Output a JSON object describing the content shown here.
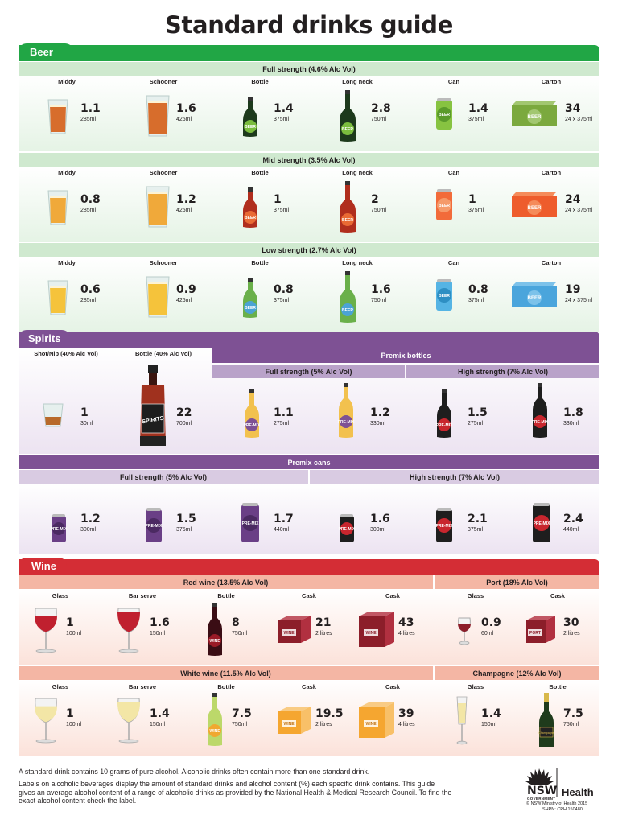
{
  "title": "Standard drinks guide",
  "colors": {
    "beer": "#21a645",
    "spirits": "#7e5194",
    "wine": "#d42d35"
  },
  "beer": {
    "section": "Beer",
    "columns": [
      "Middy",
      "Schooner",
      "Bottle",
      "Long neck",
      "Can",
      "Carton"
    ],
    "bands": [
      {
        "title": "Full strength (4.6% Alc Vol)",
        "items": [
          {
            "value": "1.1",
            "vol": "285ml"
          },
          {
            "value": "1.6",
            "vol": "425ml"
          },
          {
            "value": "1.4",
            "vol": "375ml"
          },
          {
            "value": "2.8",
            "vol": "750ml"
          },
          {
            "value": "1.4",
            "vol": "375ml"
          },
          {
            "value": "34",
            "vol": "24 x 375ml"
          }
        ]
      },
      {
        "title": "Mid strength (3.5% Alc Vol)",
        "items": [
          {
            "value": "0.8",
            "vol": "285ml"
          },
          {
            "value": "1.2",
            "vol": "425ml"
          },
          {
            "value": "1",
            "vol": "375ml"
          },
          {
            "value": "2",
            "vol": "750ml"
          },
          {
            "value": "1",
            "vol": "375ml"
          },
          {
            "value": "24",
            "vol": "24 x 375ml"
          }
        ]
      },
      {
        "title": "Low strength (2.7% Alc Vol)",
        "items": [
          {
            "value": "0.6",
            "vol": "285ml"
          },
          {
            "value": "0.9",
            "vol": "425ml"
          },
          {
            "value": "0.8",
            "vol": "375ml"
          },
          {
            "value": "1.6",
            "vol": "750ml"
          },
          {
            "value": "0.8",
            "vol": "375ml"
          },
          {
            "value": "19",
            "vol": "24 x 375ml"
          }
        ]
      }
    ],
    "icon_text": "BEER"
  },
  "spirits": {
    "section": "Spirits",
    "shot_label": "Shot/Nip (40% Alc Vol)",
    "bottle_label": "Bottle (40% Alc Vol)",
    "shot": {
      "value": "1",
      "vol": "30ml"
    },
    "bottle": {
      "value": "22",
      "vol": "700ml"
    },
    "bottle_text": "SPIRITS",
    "premix_bottles": "Premix bottles",
    "premix_cans": "Premix cans",
    "full": "Full strength (5% Alc Vol)",
    "high": "High strength (7% Alc Vol)",
    "bottles": [
      {
        "value": "1.1",
        "vol": "275ml"
      },
      {
        "value": "1.2",
        "vol": "330ml"
      },
      {
        "value": "1.5",
        "vol": "275ml"
      },
      {
        "value": "1.8",
        "vol": "330ml"
      }
    ],
    "cans": [
      {
        "value": "1.2",
        "vol": "300ml"
      },
      {
        "value": "1.5",
        "vol": "375ml"
      },
      {
        "value": "1.7",
        "vol": "440ml"
      },
      {
        "value": "1.6",
        "vol": "300ml"
      },
      {
        "value": "2.1",
        "vol": "375ml"
      },
      {
        "value": "2.4",
        "vol": "440ml"
      }
    ],
    "premix_text": "PRE-MIX"
  },
  "wine": {
    "section": "Wine",
    "red": "Red wine (13.5% Alc Vol)",
    "port": "Port (18% Alc Vol)",
    "white": "White wine (11.5% Alc Vol)",
    "champagne": "Champagne (12% Alc Vol)",
    "red_cols": [
      "Glass",
      "Bar serve",
      "Bottle",
      "Cask",
      "Cask"
    ],
    "port_cols": [
      "Glass",
      "Cask"
    ],
    "champ_cols": [
      "Glass",
      "Bottle"
    ],
    "red_items": [
      {
        "value": "1",
        "vol": "100ml"
      },
      {
        "value": "1.6",
        "vol": "150ml"
      },
      {
        "value": "8",
        "vol": "750ml"
      },
      {
        "value": "21",
        "vol": "2 litres"
      },
      {
        "value": "43",
        "vol": "4 litres"
      }
    ],
    "port_items": [
      {
        "value": "0.9",
        "vol": "60ml"
      },
      {
        "value": "30",
        "vol": "2 litres"
      }
    ],
    "white_items": [
      {
        "value": "1",
        "vol": "100ml"
      },
      {
        "value": "1.4",
        "vol": "150ml"
      },
      {
        "value": "7.5",
        "vol": "750ml"
      },
      {
        "value": "19.5",
        "vol": "2 litres"
      },
      {
        "value": "39",
        "vol": "4 litres"
      }
    ],
    "champ_items": [
      {
        "value": "1.4",
        "vol": "150ml"
      },
      {
        "value": "7.5",
        "vol": "750ml"
      }
    ],
    "wine_text": "WINE",
    "port_text": "PORT",
    "champ_text": "Champagne"
  },
  "footer": {
    "line1": "A standard drink contains 10 grams of pure alcohol. Alcoholic drinks often contain more than one standard drink.",
    "line2": "Labels on alcoholic beverages display the amount of standard drinks and alcohol content (%) each specific drink contains. This guide gives an average alcohol content of a range of alcoholic drinks as provided by the National Health & Medical Research Council. To find the exact alcohol content check the label.",
    "logo_main": "NSW",
    "logo_sub": "GOVERNMENT",
    "logo_health": "Health",
    "copyright": "© NSW Ministry of Health 2015",
    "shpn": "SHPN: CPH 150480"
  }
}
